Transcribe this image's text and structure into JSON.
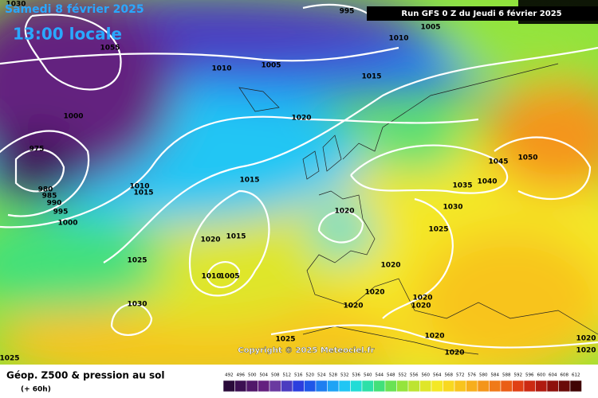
{
  "header": {
    "date": "Samedi 8 février 2025",
    "time": "13:00 locale",
    "run": "Run GFS 0 Z du Jeudi 6 février 2025"
  },
  "map": {
    "isobar_labels": [
      1030,
      995,
      1005,
      1010,
      1055,
      1010,
      1005,
      1015,
      1020,
      1000,
      975,
      1015,
      1045,
      1050,
      1035,
      1040,
      1010,
      1015,
      980,
      985,
      990,
      995,
      1000,
      1020,
      1030,
      1025,
      1020,
      1015,
      1025,
      1020,
      1010,
      1005,
      1020,
      1020,
      1020,
      1030,
      1020,
      1020,
      1025,
      1020,
      1020,
      1025,
      1020
    ],
    "copyright": "Copyright © 2025 Meteociel.fr"
  },
  "footer": {
    "title": "Géop. Z500 & pression au sol",
    "lead": "(+ 60h)",
    "scale": {
      "labels": [
        492,
        496,
        500,
        504,
        508,
        512,
        516,
        520,
        524,
        528,
        532,
        536,
        540,
        544,
        548,
        552,
        556,
        560,
        564,
        568,
        572,
        576,
        580,
        584,
        588,
        592,
        596,
        600,
        604,
        608,
        612
      ],
      "colors": [
        "#2a0a3a",
        "#3c0f52",
        "#51176a",
        "#64207f",
        "#6a3aa0",
        "#4b3cc0",
        "#2c3ede",
        "#1f57e8",
        "#1e7ef0",
        "#1ea3f5",
        "#20c6f4",
        "#22dcd6",
        "#2de0a8",
        "#42e07a",
        "#6ae254",
        "#95e43c",
        "#bde432",
        "#dfe62a",
        "#f4e825",
        "#f8d820",
        "#f8c41e",
        "#f7ae1c",
        "#f4951a",
        "#f07a18",
        "#ea5e16",
        "#e04014",
        "#cc2a12",
        "#b01a10",
        "#8e100c",
        "#6a0a08",
        "#400404"
      ]
    }
  }
}
